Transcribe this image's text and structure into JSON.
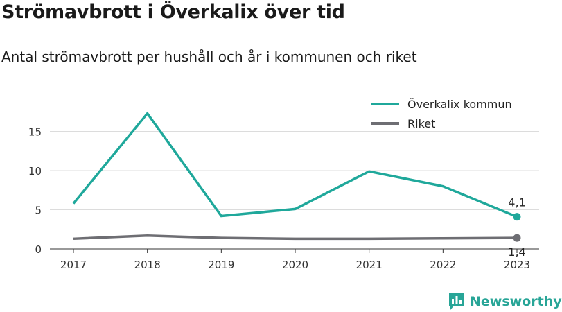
{
  "chart_data": {
    "type": "line",
    "title": "Strömavbrott i Överkalix över tid",
    "subtitle": "Antal strömavbrott per hushåll och år i kommunen och riket",
    "categories": [
      "2017",
      "2018",
      "2019",
      "2020",
      "2021",
      "2022",
      "2023"
    ],
    "y_ticks": [
      "0",
      "5",
      "10",
      "15"
    ],
    "ylim": [
      0,
      18.5
    ],
    "grid": true,
    "legend_position": "top-right",
    "series": [
      {
        "name": "Överkalix kommun",
        "color": "#1fa89b",
        "values": [
          5.8,
          17.3,
          4.2,
          5.1,
          9.9,
          8.0,
          4.1
        ],
        "end_label": "4,1"
      },
      {
        "name": "Riket",
        "color": "#6e6e73",
        "values": [
          1.3,
          1.7,
          1.4,
          1.3,
          1.3,
          1.35,
          1.4
        ],
        "end_label": "1,4"
      }
    ]
  },
  "branding": {
    "name": "Newsworthy",
    "icon": "newsworthy-logo-icon",
    "color": "#28a597"
  }
}
